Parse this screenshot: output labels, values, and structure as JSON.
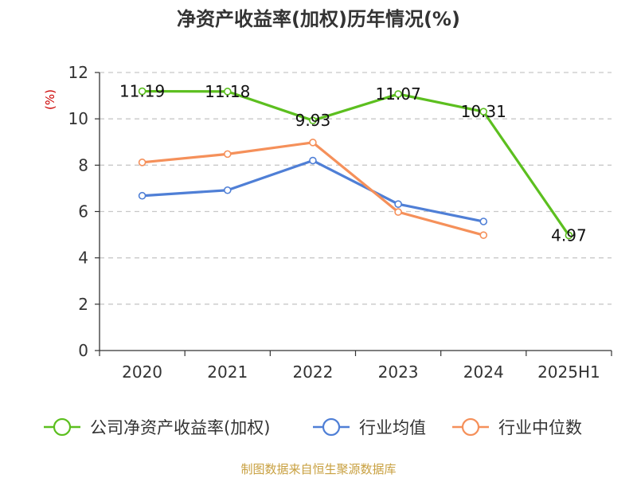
{
  "chart_data": {
    "type": "line",
    "title": "净资产收益率(加权)历年情况(%)",
    "ylabel": "(%)",
    "categories": [
      "2020",
      "2021",
      "2022",
      "2023",
      "2024",
      "2025H1"
    ],
    "ylim": [
      0,
      12
    ],
    "yticks": [
      0,
      2,
      4,
      6,
      8,
      10,
      12
    ],
    "grid": true,
    "legend_position": "bottom",
    "series": [
      {
        "name": "公司净资产收益率(加权)",
        "color": "#5cbf1f",
        "values": [
          11.19,
          11.18,
          9.93,
          11.07,
          10.31,
          4.97
        ],
        "labels": [
          "11.19",
          "11.18",
          "9.93",
          "11.07",
          "10.31",
          "4.97"
        ]
      },
      {
        "name": "行业均值",
        "color": "#4f7fd6",
        "values": [
          6.68,
          6.92,
          8.2,
          6.32,
          5.57,
          null
        ]
      },
      {
        "name": "行业中位数",
        "color": "#f5905a",
        "values": [
          8.12,
          8.48,
          8.98,
          5.98,
          4.98,
          null
        ]
      }
    ],
    "source": "制图数据来自恒生聚源数据库"
  }
}
